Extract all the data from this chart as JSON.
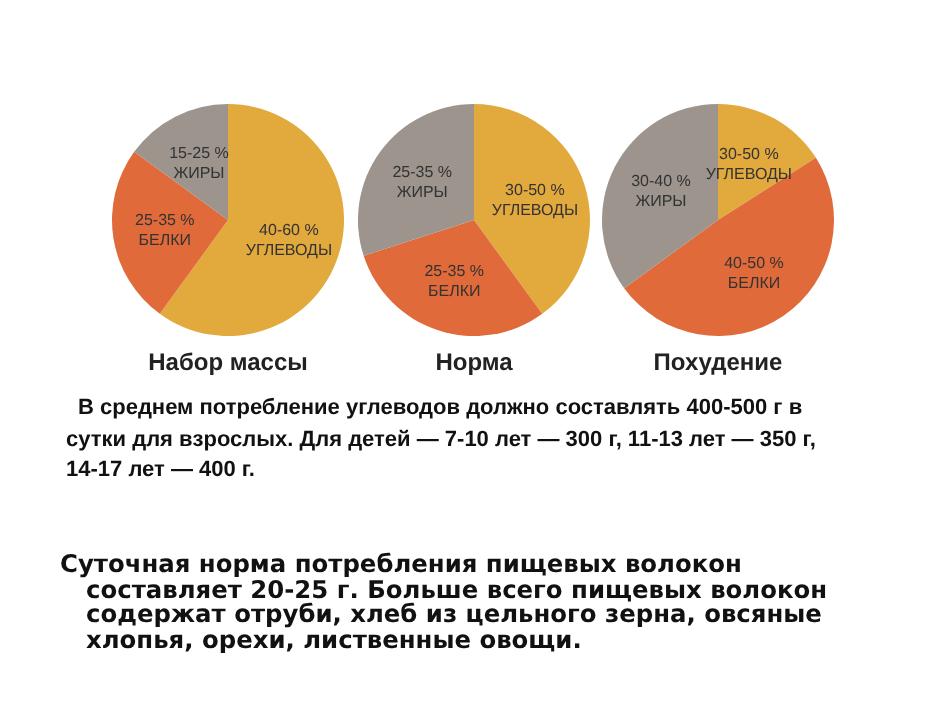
{
  "chart_data": [
    {
      "type": "pie",
      "title": "Набор массы",
      "categories": [
        "40-60 %\nУГЛЕВОДЫ",
        "25-35 %\nБЕЛКИ",
        "15-25 %\nЖИРЫ"
      ],
      "values": [
        60,
        25,
        15
      ],
      "colors": [
        "#e2a93d",
        "#e06a3a",
        "#9c948d"
      ],
      "legend": false,
      "annotations": [
        "В среднем  потребление углеводов должно составлять  400-500 г в сутки для взрослых. Для детей — 7-10 лет — 300 г, 11-13 лет — 350 г, 14-17 лет — 400 г.",
        "Суточная норма потребления пищевых волокон составляет 20-25 г. Больше всего пищевых волокон содержат отруби, хлеб из цельного зерна, овсяные хлопья, орехи, лиственные овощи."
      ]
    },
    {
      "type": "pie",
      "title": "Норма",
      "categories": [
        "30-50 %\nУГЛЕВОДЫ",
        "25-35 %\nБЕЛКИ",
        "25-35 %\nЖИРЫ"
      ],
      "values": [
        40,
        30,
        30
      ],
      "colors": [
        "#e2a93d",
        "#e06a3a",
        "#9c948d"
      ],
      "legend": false
    },
    {
      "type": "pie",
      "title": "Похудение",
      "categories": [
        "30-50 %\nУГЛЕВОДЫ",
        "40-50 %\nБЕЛКИ",
        "30-40 %\nЖИРЫ"
      ],
      "values": [
        16,
        49,
        35
      ],
      "colors": [
        "#e2a93d",
        "#e06a3a",
        "#9c948d"
      ],
      "legend": false
    }
  ]
}
